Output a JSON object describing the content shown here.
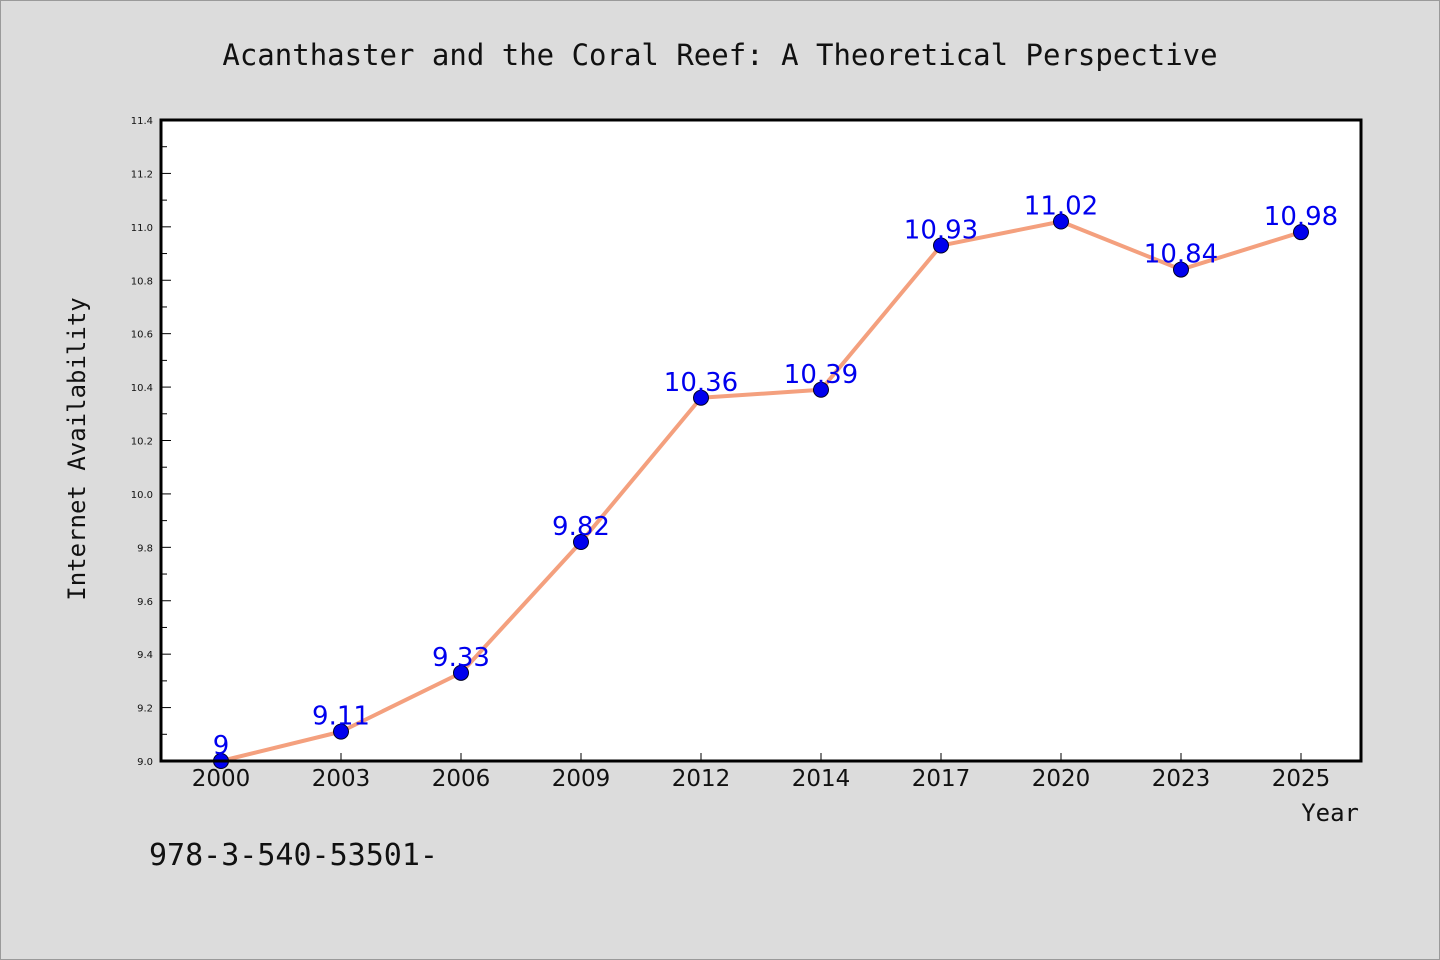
{
  "chart_data": {
    "type": "line",
    "title": "Acanthaster and the Coral Reef: A Theoretical Perspective",
    "xlabel": "Year",
    "ylabel": "Internet Availability",
    "categories": [
      "2000",
      "2003",
      "2006",
      "2009",
      "2012",
      "2014",
      "2017",
      "2020",
      "2023",
      "2025"
    ],
    "series": [
      {
        "values": [
          9,
          9.11,
          9.33,
          9.82,
          10.36,
          10.39,
          10.93,
          11.02,
          10.84,
          10.98
        ],
        "data_labels": [
          "9",
          "9.11",
          "9.33",
          "9.82",
          "10.36",
          "10.39",
          "10.93",
          "11.02",
          "10.84",
          "10.98"
        ]
      }
    ],
    "ylim": [
      9.0,
      11.4
    ],
    "yticks": [
      "9.0",
      "9.2",
      "9.4",
      "9.6",
      "9.8",
      "10.0",
      "10.2",
      "10.4",
      "10.6",
      "10.8",
      "11.0",
      "11.2",
      "11.4"
    ],
    "grid": false,
    "legend": "none",
    "colors": {
      "line": "#f4a07e",
      "marker": "#0000ee",
      "data_label": "#0000ee",
      "background": "#dcdcdc",
      "plot_background": "#ffffff"
    }
  },
  "footer_text": "978-3-540-53501-"
}
